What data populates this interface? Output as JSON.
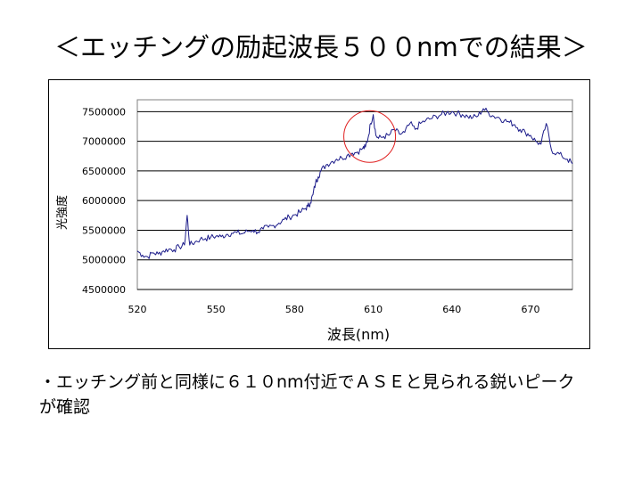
{
  "slide": {
    "title": "＜エッチングの励起波長５００nmでの結果＞",
    "body_line1": "・エッチング前と同様に６１０nm付近でＡＳＥと見られる鋭いピーク",
    "body_line2": "が確認"
  },
  "colors": {
    "series": "#1c1c8a",
    "highlight_circle": "#e02020",
    "grid": "#000000"
  },
  "chart_data": {
    "type": "line",
    "title": "",
    "xlabel": "波長(nm)",
    "ylabel": "光強度",
    "xlim": [
      520,
      686
    ],
    "ylim": [
      4500000,
      7700000
    ],
    "x_ticks": [
      520,
      550,
      580,
      610,
      640,
      670
    ],
    "x_tick_labels": [
      "520",
      "550",
      "580",
      "610",
      "640",
      "670"
    ],
    "y_ticks": [
      4500000,
      5000000,
      5500000,
      6000000,
      6500000,
      7000000,
      7500000
    ],
    "y_tick_labels": [
      "4500000",
      "5000000",
      "5500000",
      "6000000",
      "6500000",
      "7000000",
      "7500000"
    ],
    "grid": true,
    "legend": "none",
    "annotation": {
      "type": "circle",
      "label": "",
      "x": 610,
      "y": 7200000
    },
    "series": [
      {
        "x": [
          520,
          522,
          524,
          526,
          528,
          530,
          532,
          534,
          536,
          538,
          539,
          540,
          542,
          544,
          546,
          548,
          550,
          552,
          554,
          556,
          558,
          560,
          562,
          564,
          566,
          568,
          570,
          572,
          574,
          576,
          578,
          580,
          582,
          584,
          585,
          586,
          587,
          588,
          589,
          590,
          592,
          594,
          596,
          598,
          600,
          602,
          604,
          606,
          607,
          608,
          609,
          610,
          611,
          612,
          614,
          616,
          618,
          620,
          622,
          624,
          626,
          628,
          630,
          632,
          634,
          636,
          638,
          640,
          642,
          644,
          646,
          648,
          650,
          652,
          654,
          656,
          658,
          660,
          662,
          664,
          666,
          668,
          670,
          672,
          674,
          676,
          678,
          680,
          682,
          684,
          686
        ],
        "values": [
          5150000,
          5080000,
          5050000,
          5120000,
          5100000,
          5150000,
          5180000,
          5170000,
          5220000,
          5250000,
          5750000,
          5250000,
          5300000,
          5350000,
          5360000,
          5380000,
          5400000,
          5390000,
          5430000,
          5450000,
          5460000,
          5440000,
          5480000,
          5500000,
          5470000,
          5520000,
          5550000,
          5580000,
          5620000,
          5680000,
          5720000,
          5760000,
          5800000,
          5860000,
          5900000,
          5960000,
          6100000,
          6300000,
          6400000,
          6500000,
          6600000,
          6650000,
          6700000,
          6720000,
          6760000,
          6800000,
          6820000,
          6880000,
          6900000,
          7050000,
          7300000,
          7450000,
          7100000,
          7050000,
          7080000,
          7100000,
          7200000,
          7120000,
          7150000,
          7300000,
          7200000,
          7300000,
          7350000,
          7380000,
          7420000,
          7450000,
          7480000,
          7500000,
          7470000,
          7450000,
          7420000,
          7400000,
          7430000,
          7550000,
          7480000,
          7420000,
          7400000,
          7350000,
          7320000,
          7280000,
          7200000,
          7150000,
          7100000,
          7000000,
          6950000,
          7300000,
          6850000,
          6800000,
          6750000,
          6700000,
          6620000
        ]
      }
    ]
  }
}
